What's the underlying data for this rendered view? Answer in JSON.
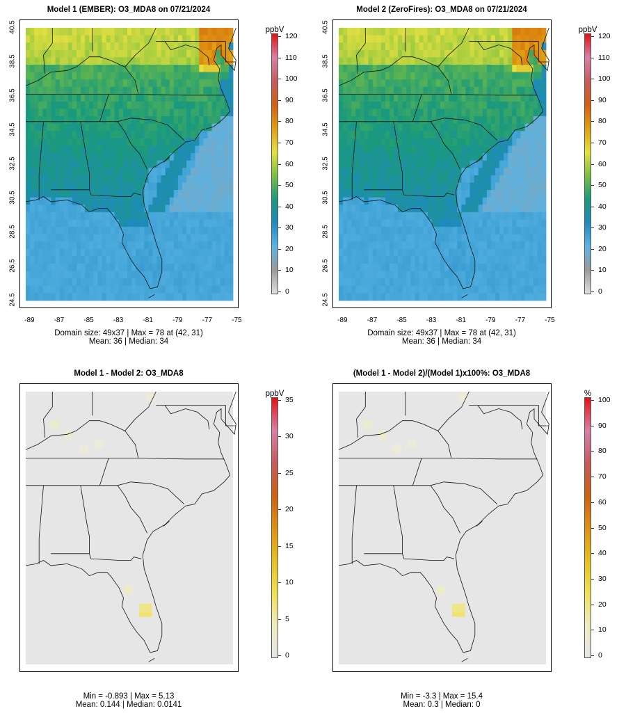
{
  "panels": [
    {
      "title": "Model 1 (EMBER): O3_MDA8 on 07/21/2024",
      "stats": [
        "Domain size: 49x37 | Max = 78 at (42, 31)",
        "Mean: 36 |  Median: 34"
      ],
      "colorbar": {
        "unit": "ppbV",
        "ticks": [
          "0",
          "10",
          "20",
          "30",
          "40",
          "50",
          "60",
          "70",
          "80",
          "90",
          "100",
          "110",
          "120"
        ],
        "scale": "conc"
      },
      "axes": {
        "y_ticks": [
          "40.5",
          "38.5",
          "36.5",
          "34.5",
          "32.5",
          "30.5",
          "28.5",
          "26.5",
          "24.5"
        ],
        "x_ticks": [
          "-89",
          "-87",
          "-85",
          "-83",
          "-81",
          "-79",
          "-77",
          "-75"
        ]
      },
      "field": "conc"
    },
    {
      "title": "Model 2 (ZeroFires): O3_MDA8 on 07/21/2024",
      "stats": [
        "Domain size: 49x37 | Max = 78 at (42, 31)",
        "Mean: 36 |  Median: 34"
      ],
      "colorbar": {
        "unit": "ppbV",
        "ticks": [
          "0",
          "10",
          "20",
          "30",
          "40",
          "50",
          "60",
          "70",
          "80",
          "90",
          "100",
          "110",
          "120"
        ],
        "scale": "conc"
      },
      "axes": {
        "y_ticks": [
          "40.5",
          "38.5",
          "36.5",
          "34.5",
          "32.5",
          "30.5",
          "28.5",
          "26.5",
          "24.5"
        ],
        "x_ticks": [
          "-89",
          "-87",
          "-85",
          "-83",
          "-81",
          "-79",
          "-77",
          "-75"
        ]
      },
      "field": "conc"
    },
    {
      "title": "Model 1 - Model 2: O3_MDA8",
      "stats": [
        "Min = -0.893 | Max = 5.13",
        "Mean: 0.144 |  Median: 0.0141"
      ],
      "colorbar": {
        "unit": "ppbV",
        "ticks": [
          "0",
          "5",
          "10",
          "15",
          "20",
          "25",
          "30",
          "35"
        ],
        "scale": "diff"
      },
      "field": "diff"
    },
    {
      "title": "(Model 1 - Model 2)/(Model 1)x100%: O3_MDA8",
      "stats": [
        "Min = -3.3 | Max = 15.4",
        "Mean: 0.3 |  Median: 0"
      ],
      "colorbar": {
        "unit": "%",
        "ticks": [
          "0",
          "10",
          "20",
          "30",
          "40",
          "50",
          "60",
          "70",
          "80",
          "90",
          "100"
        ],
        "scale": "diff"
      },
      "field": "pct"
    }
  ],
  "colors": {
    "conc_scale": [
      "#e0e0e0",
      "#9a9a9a",
      "#5ab4e5",
      "#1f8ac0",
      "#1a9a7a",
      "#7ac040",
      "#e5e040",
      "#e0a010",
      "#d46010",
      "#c85a5a",
      "#d880a8",
      "#e81010"
    ],
    "diff_scale": [
      "#e5e5e5",
      "#eeeac0",
      "#f0e050",
      "#e8c020",
      "#e09010",
      "#d06010",
      "#c85a5a",
      "#d880a8",
      "#e81010"
    ],
    "diff_bg": "#e6e6e6"
  }
}
